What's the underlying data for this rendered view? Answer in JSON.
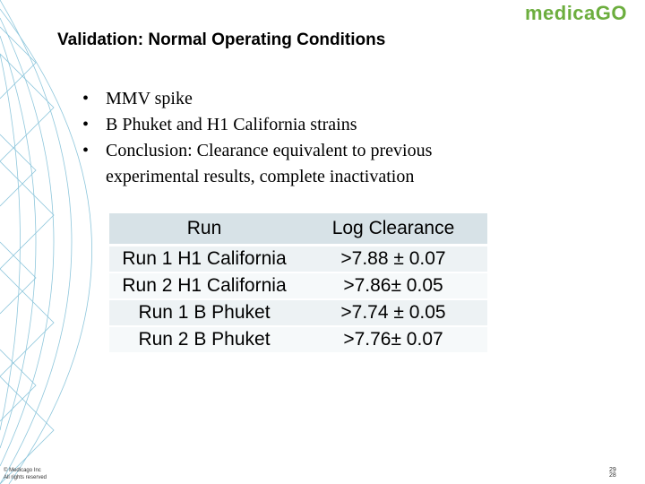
{
  "logo": "medicaGO",
  "title": "Validation: Normal Operating Conditions",
  "bullets": [
    "MMV spike",
    "B Phuket and H1 California strains",
    "Conclusion: Clearance equivalent to previous experimental results, complete inactivation"
  ],
  "table": {
    "header": [
      "Run",
      "Log Clearance"
    ],
    "rows": [
      [
        "Run 1 H1 California",
        ">7.88 ± 0.07"
      ],
      [
        "Run 2 H1 California",
        ">7.86± 0.05"
      ],
      [
        "Run 1 B Phuket",
        ">7.74 ± 0.05"
      ],
      [
        "Run 2 B Phuket",
        ">7.76± 0.07"
      ]
    ]
  },
  "footer": [
    "© Medicago Inc",
    "All rights reserved"
  ],
  "page_number": [
    "29",
    "28"
  ]
}
